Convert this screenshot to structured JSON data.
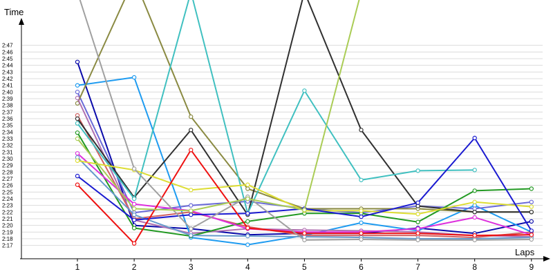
{
  "chart_data": {
    "type": "line",
    "title": "",
    "xlabel": "Laps",
    "ylabel": "Time",
    "x": [
      1,
      2,
      3,
      4,
      5,
      6,
      7,
      8,
      9
    ],
    "x_tick_labels": [
      "1",
      "2",
      "3",
      "4",
      "5",
      "6",
      "7",
      "8",
      "9"
    ],
    "ylim_seconds": [
      135,
      168
    ],
    "y_ticks": [
      "2:17",
      "2:18",
      "2:19",
      "2:20",
      "2:21",
      "2:22",
      "2:23",
      "2:24",
      "2:25",
      "2:26",
      "2:27",
      "2:28",
      "2:29",
      "2:30",
      "2:31",
      "2:32",
      "2:33",
      "2:34",
      "2:35",
      "2:36",
      "2:37",
      "2:38",
      "2:39",
      "2:40",
      "2:41",
      "2:42",
      "2:43",
      "2:44",
      "2:45",
      "2:46",
      "2:47"
    ],
    "grid": true,
    "legend": "none",
    "series": [
      {
        "color": "#0a0aaa",
        "values": [
          "2:44.5",
          "2:20.0",
          "2:19.5",
          "2:18.6",
          "2:18.8",
          "2:18.8",
          "2:19.6",
          "2:18.8",
          "2:20.6"
        ]
      },
      {
        "color": "#1e9bf0",
        "values": [
          "2:41.0",
          "2:42.2",
          "2:18.2",
          "2:17.1",
          "2:18.5",
          "2:20.4",
          "2:19.2",
          "2:23.0",
          "2:19.0"
        ]
      },
      {
        "color": "#6a6ad8",
        "values": [
          "2:40.0",
          "2:21.9",
          "2:23.0",
          "2:23.6",
          "2:22.5",
          "2:21.9",
          "2:22.9",
          "2:22.5",
          "2:23.5"
        ]
      },
      {
        "color": "#8a8a42",
        "values": [
          "2:38.3",
          "2:57.0",
          "2:36.3",
          "2:25.5",
          "2:22.5",
          "2:22.5",
          "2:22.5",
          "2:22.0",
          "2:22.0"
        ]
      },
      {
        "color": "#b070b0",
        "values": [
          "2:39.1",
          "2:20.8",
          "2:18.8",
          "2:19.5",
          "2:19.3",
          "2:19.2",
          "2:19.0",
          "2:18.5",
          "2:18.3"
        ]
      },
      {
        "color": "#d06060",
        "values": [
          "2:36.5",
          "2:21.0",
          "2:22.0",
          "2:19.8",
          "2:18.5",
          "2:18.5",
          "2:18.5",
          "2:18.2",
          "2:19.0"
        ]
      },
      {
        "color": "#303030",
        "values": [
          "2:36.0",
          "2:24.2",
          "2:34.3",
          "2:21.6",
          "2:55.0",
          "2:34.3",
          "2:22.9",
          "2:22.0",
          "2:22.0"
        ]
      },
      {
        "color": "#40c0c0",
        "values": [
          "2:35.3",
          "2:24.0",
          "2:55.0",
          "2:21.8",
          "2:40.2",
          "2:26.8",
          "2:28.2",
          "2:28.3",
          ""
        ]
      },
      {
        "color": "#229922",
        "values": [
          "2:33.9",
          "2:19.6",
          "2:18.4",
          "2:20.6",
          "2:21.8",
          "2:21.8",
          "2:20.5",
          "2:25.2",
          "2:25.5"
        ]
      },
      {
        "color": "#dd30dd",
        "values": [
          "2:30.8",
          "2:23.2",
          "2:22.2",
          "2:19.5",
          "2:19.0",
          "2:19.0",
          "2:19.5",
          "2:21.2",
          "2:18.6"
        ]
      },
      {
        "color": "#6699cc",
        "values": [
          "2:30.2",
          "2:21.6",
          "2:18.5",
          "2:18.4",
          "2:18.3",
          "2:18.2",
          "2:18.0",
          "2:18.0",
          "2:18.2"
        ]
      },
      {
        "color": "#dddd33",
        "values": [
          "2:29.7",
          "2:28.3",
          "2:25.3",
          "2:26.1",
          "2:22.2",
          "2:22.2",
          "2:21.7",
          "2:23.5",
          "2:22.8"
        ]
      },
      {
        "color": "#1a1ad0",
        "values": [
          "2:27.4",
          "2:20.8",
          "2:21.6",
          "2:21.8",
          "2:22.5",
          "2:21.3",
          "2:23.4",
          "2:33.1",
          "2:19.2"
        ]
      },
      {
        "color": "#ee1111",
        "values": [
          "2:26.1",
          "2:17.3",
          "2:31.3",
          "2:19.6",
          "2:18.8",
          "2:18.8",
          "2:18.8",
          "2:18.5",
          "2:18.6"
        ]
      },
      {
        "color": "#a0a0a0",
        "values": [
          "2:55.0",
          "2:28.5",
          "2:19.5",
          "2:24.3",
          "2:17.8",
          "2:17.9",
          "2:17.8",
          "2:17.8",
          "2:17.9"
        ]
      },
      {
        "color": "#aacc55",
        "values": [
          "2:33.0",
          "2:22.5",
          "2:22.2",
          "2:24.0",
          "2:22.3",
          "2:55.0",
          "",
          "",
          ""
        ]
      }
    ]
  }
}
